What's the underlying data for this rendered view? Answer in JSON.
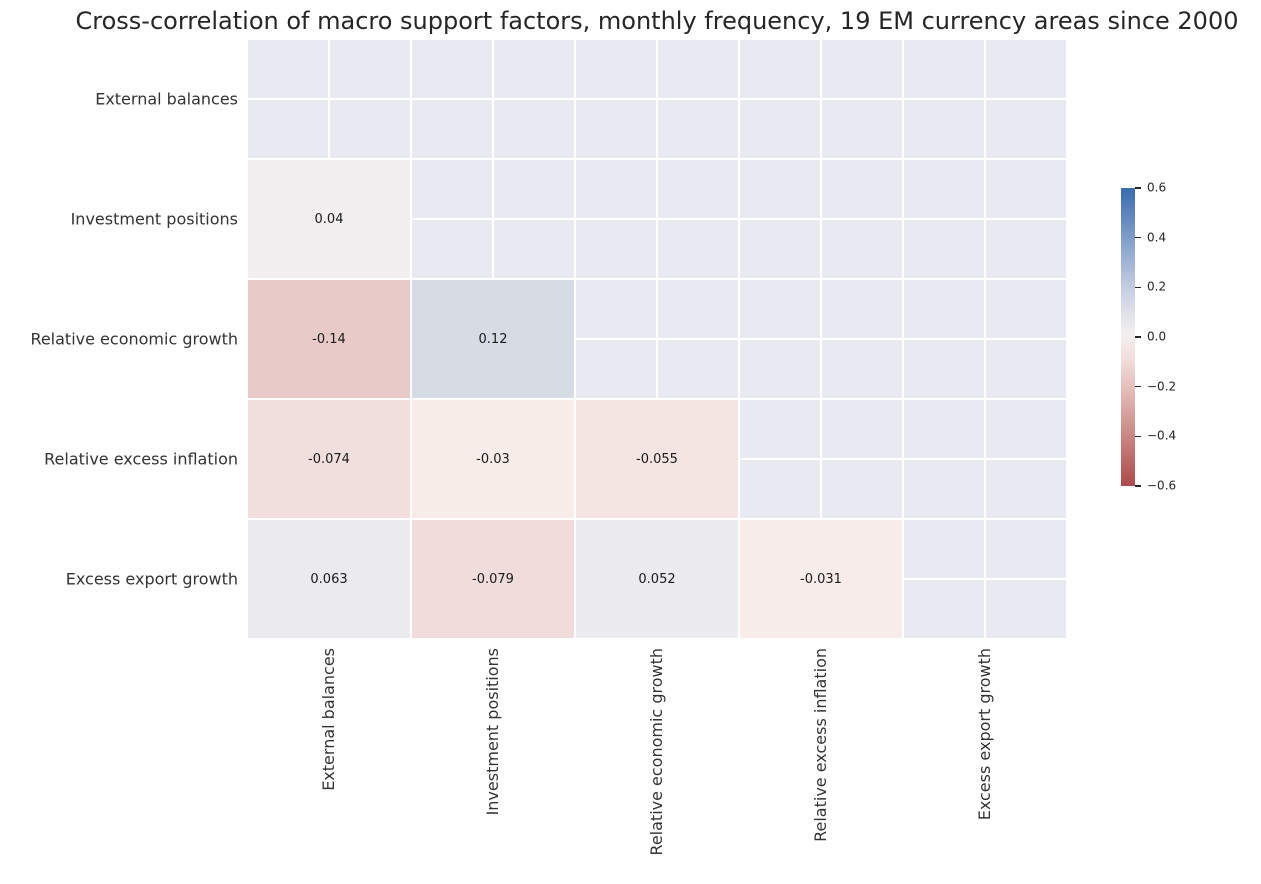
{
  "chart_data": {
    "type": "heatmap",
    "title": "Cross-correlation of macro support factors, monthly frequency, 19 EM currency areas since 2000",
    "row_labels": [
      "External balances",
      "Investment positions",
      "Relative economic growth",
      "Relative excess inflation",
      "Excess export growth"
    ],
    "col_labels": [
      "External balances",
      "Investment positions",
      "Relative economic growth",
      "Relative excess inflation",
      "Excess export growth"
    ],
    "matrix": [
      [
        null,
        null,
        null,
        null,
        null
      ],
      [
        0.04,
        null,
        null,
        null,
        null
      ],
      [
        -0.14,
        0.12,
        null,
        null,
        null
      ],
      [
        -0.074,
        -0.03,
        -0.055,
        null,
        null
      ],
      [
        0.063,
        -0.079,
        0.052,
        -0.031,
        null
      ]
    ],
    "cells": [
      {
        "row": 1,
        "col": 0,
        "value": 0.04,
        "label": "0.04",
        "color": "#f2eff0"
      },
      {
        "row": 2,
        "col": 0,
        "value": -0.14,
        "label": "-0.14",
        "color": "#e8cbc9"
      },
      {
        "row": 2,
        "col": 1,
        "value": 0.12,
        "label": "0.12",
        "color": "#d7dbe4"
      },
      {
        "row": 3,
        "col": 0,
        "value": -0.074,
        "label": "-0.074",
        "color": "#f1dfde"
      },
      {
        "row": 3,
        "col": 1,
        "value": -0.03,
        "label": "-0.03",
        "color": "#f8ece9"
      },
      {
        "row": 3,
        "col": 2,
        "value": -0.055,
        "label": "-0.055",
        "color": "#f4e5e2"
      },
      {
        "row": 4,
        "col": 0,
        "value": 0.063,
        "label": "0.063",
        "color": "#eaeaef"
      },
      {
        "row": 4,
        "col": 1,
        "value": -0.079,
        "label": "-0.079",
        "color": "#f0dcdb"
      },
      {
        "row": 4,
        "col": 2,
        "value": 0.052,
        "label": "0.052",
        "color": "#ebebf0"
      },
      {
        "row": 4,
        "col": 3,
        "value": -0.031,
        "label": "-0.031",
        "color": "#f8edeb"
      }
    ],
    "masked_upper_triangle_and_diagonal": true,
    "grid": {
      "on": true,
      "line_color": "#ffffff",
      "masked_cell_color": "#e9e9f2"
    },
    "value_range": [
      -0.6,
      0.6
    ],
    "colormap": "vlag-diverging-blue-white-red",
    "colorbar": {
      "position": "right",
      "tick_labels": [
        "0.6",
        "0.4",
        "0.2",
        "0.0",
        "−0.2",
        "−0.4",
        "−0.6"
      ],
      "gradient_stops": [
        {
          "pos": 0,
          "color": "#3a6cb0"
        },
        {
          "pos": 8.33,
          "color": "#5c83bd"
        },
        {
          "pos": 16.67,
          "color": "#7f9cc9"
        },
        {
          "pos": 25,
          "color": "#a2b4d5"
        },
        {
          "pos": 33.33,
          "color": "#c4cde0"
        },
        {
          "pos": 41.67,
          "color": "#dfe1e9"
        },
        {
          "pos": 50,
          "color": "#f4f0ef"
        },
        {
          "pos": 58.33,
          "color": "#f0dbd8"
        },
        {
          "pos": 66.67,
          "color": "#e5c0bd"
        },
        {
          "pos": 75,
          "color": "#d8a3a0"
        },
        {
          "pos": 83.33,
          "color": "#ca8684"
        },
        {
          "pos": 91.67,
          "color": "#bc6767"
        },
        {
          "pos": 100,
          "color": "#ad4a4d"
        }
      ]
    },
    "text_colors": {
      "title": "#262626",
      "axis_labels": "#333333",
      "annotations": "#1a1a1a",
      "colorbar_ticks": "#262626"
    }
  }
}
